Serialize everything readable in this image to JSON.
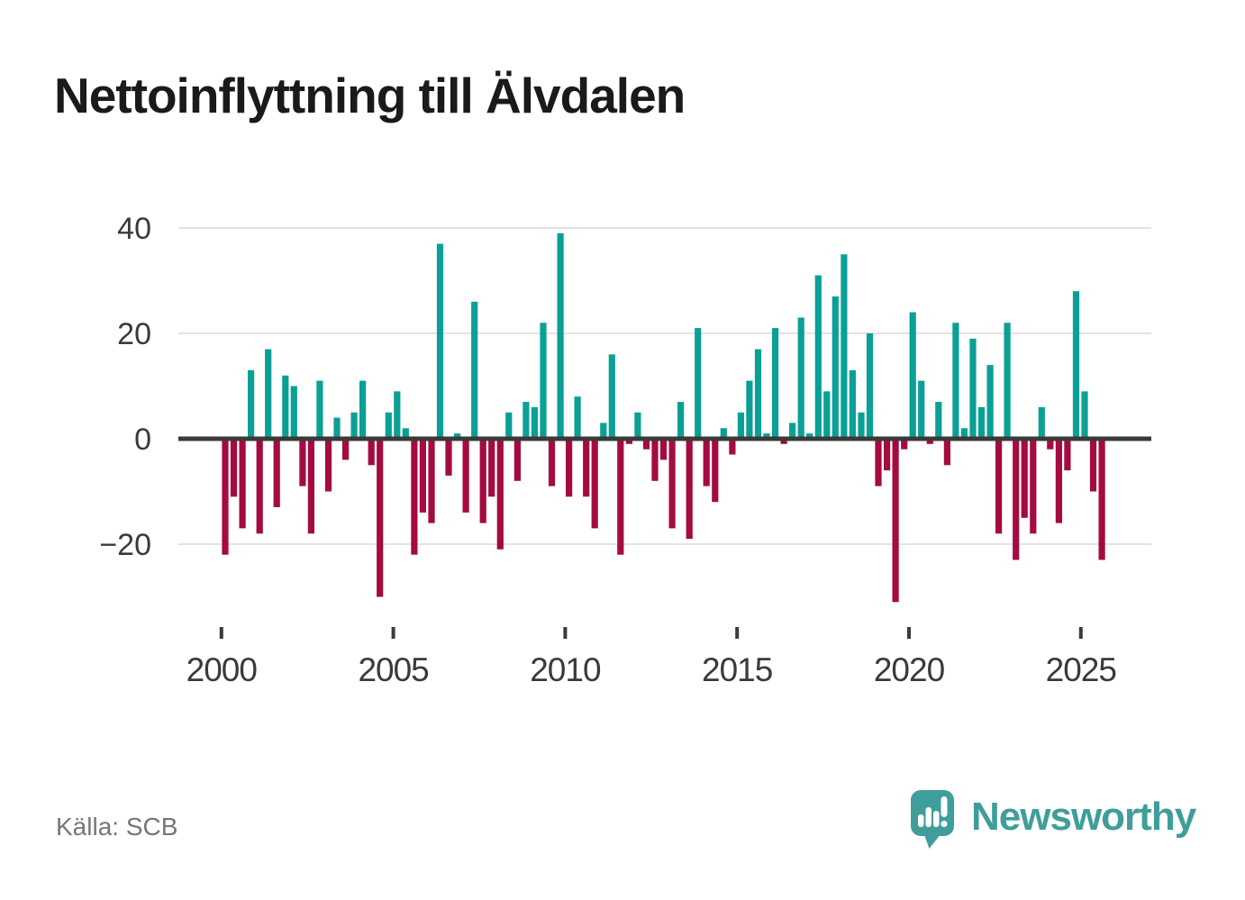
{
  "title": "Nettoinflyttning till Älvdalen",
  "footer": {
    "source": "Källa: SCB",
    "logo_text": "Newsworthy"
  },
  "colors": {
    "positive": "#0aa096",
    "negative": "#a40b40",
    "grid": "#e3e3e3",
    "axis": "#3a3a3a",
    "title_text": "#1a1a1a",
    "source_text": "#767676",
    "logo_teal": "#3f9e99"
  },
  "chart_data": {
    "type": "bar",
    "title": "Nettoinflyttning till Älvdalen",
    "x_period": "quarterly",
    "grid": "horizontal",
    "legend": "none",
    "positive_color": "#0aa096",
    "negative_color": "#a40b40",
    "ylim": [
      -33,
      42
    ],
    "yticks": [
      {
        "value": -20,
        "label": "−20"
      },
      {
        "value": 0,
        "label": "0"
      },
      {
        "value": 20,
        "label": "20"
      },
      {
        "value": 40,
        "label": "40"
      }
    ],
    "xticks": [
      {
        "year": 2000,
        "label": "2000"
      },
      {
        "year": 2005,
        "label": "2005"
      },
      {
        "year": 2010,
        "label": "2010"
      },
      {
        "year": 2015,
        "label": "2015"
      },
      {
        "year": 2020,
        "label": "2020"
      },
      {
        "year": 2025,
        "label": "2025"
      }
    ],
    "periods": [
      "2000Q1",
      "2000Q2",
      "2000Q3",
      "2000Q4",
      "2001Q1",
      "2001Q2",
      "2001Q3",
      "2001Q4",
      "2002Q1",
      "2002Q2",
      "2002Q3",
      "2002Q4",
      "2003Q1",
      "2003Q2",
      "2003Q3",
      "2003Q4",
      "2004Q1",
      "2004Q2",
      "2004Q3",
      "2004Q4",
      "2005Q1",
      "2005Q2",
      "2005Q3",
      "2005Q4",
      "2006Q1",
      "2006Q2",
      "2006Q3",
      "2006Q4",
      "2007Q1",
      "2007Q2",
      "2007Q3",
      "2007Q4",
      "2008Q1",
      "2008Q2",
      "2008Q3",
      "2008Q4",
      "2009Q1",
      "2009Q2",
      "2009Q3",
      "2009Q4",
      "2010Q1",
      "2010Q2",
      "2010Q3",
      "2010Q4",
      "2011Q1",
      "2011Q2",
      "2011Q3",
      "2011Q4",
      "2012Q1",
      "2012Q2",
      "2012Q3",
      "2012Q4",
      "2013Q1",
      "2013Q2",
      "2013Q3",
      "2013Q4",
      "2014Q1",
      "2014Q2",
      "2014Q3",
      "2014Q4",
      "2015Q1",
      "2015Q2",
      "2015Q3",
      "2015Q4",
      "2016Q1",
      "2016Q2",
      "2016Q3",
      "2016Q4",
      "2017Q1",
      "2017Q2",
      "2017Q3",
      "2017Q4",
      "2018Q1",
      "2018Q2",
      "2018Q3",
      "2018Q4",
      "2019Q1",
      "2019Q2",
      "2019Q3",
      "2019Q4",
      "2020Q1",
      "2020Q2",
      "2020Q3",
      "2020Q4",
      "2021Q1",
      "2021Q2",
      "2021Q3",
      "2021Q4",
      "2022Q1",
      "2022Q2",
      "2022Q3",
      "2022Q4",
      "2023Q1",
      "2023Q2",
      "2023Q3",
      "2023Q4",
      "2024Q1",
      "2024Q2",
      "2024Q3",
      "2024Q4",
      "2025Q1",
      "2025Q2",
      "2025Q3"
    ],
    "values": [
      -22,
      -11,
      -17,
      13,
      -18,
      17,
      -13,
      12,
      10,
      -9,
      -18,
      11,
      -10,
      4,
      -4,
      5,
      11,
      -5,
      -30,
      5,
      9,
      2,
      -22,
      -14,
      -16,
      37,
      -7,
      1,
      -14,
      26,
      -16,
      -11,
      -21,
      5,
      -8,
      7,
      6,
      22,
      -9,
      39,
      -11,
      8,
      -11,
      -17,
      3,
      16,
      -22,
      -1,
      5,
      -2,
      -8,
      -4,
      -17,
      7,
      -19,
      21,
      -9,
      -12,
      2,
      -3,
      5,
      11,
      17,
      1,
      21,
      -1,
      3,
      23,
      1,
      31,
      9,
      27,
      35,
      13,
      5,
      20,
      -9,
      -6,
      -31,
      -2,
      24,
      11,
      -1,
      7,
      -5,
      22,
      2,
      19,
      6,
      14,
      -18,
      22,
      -23,
      -15,
      -18,
      6,
      -2,
      -16,
      -6,
      28,
      9,
      -10,
      -23
    ]
  }
}
